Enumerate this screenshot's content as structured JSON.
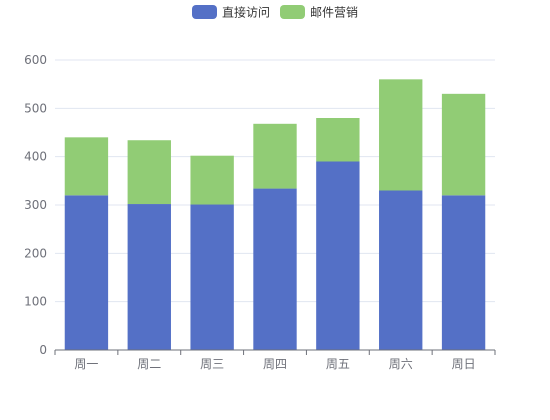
{
  "chart_data": {
    "type": "bar",
    "stacked": true,
    "categories": [
      "周一",
      "周二",
      "周三",
      "周四",
      "周五",
      "周六",
      "周日"
    ],
    "series": [
      {
        "name": "直接访问",
        "values": [
          320,
          302,
          301,
          334,
          390,
          330,
          320
        ],
        "color": "#5470c6"
      },
      {
        "name": "邮件营销",
        "values": [
          120,
          132,
          101,
          134,
          90,
          230,
          210
        ],
        "color": "#91cc75"
      }
    ],
    "ylim": [
      0,
      600
    ],
    "yticks": [
      0,
      100,
      200,
      300,
      400,
      500,
      600
    ],
    "grid": true,
    "legend_position": "top-center",
    "title": "",
    "xlabel": "",
    "ylabel": ""
  }
}
